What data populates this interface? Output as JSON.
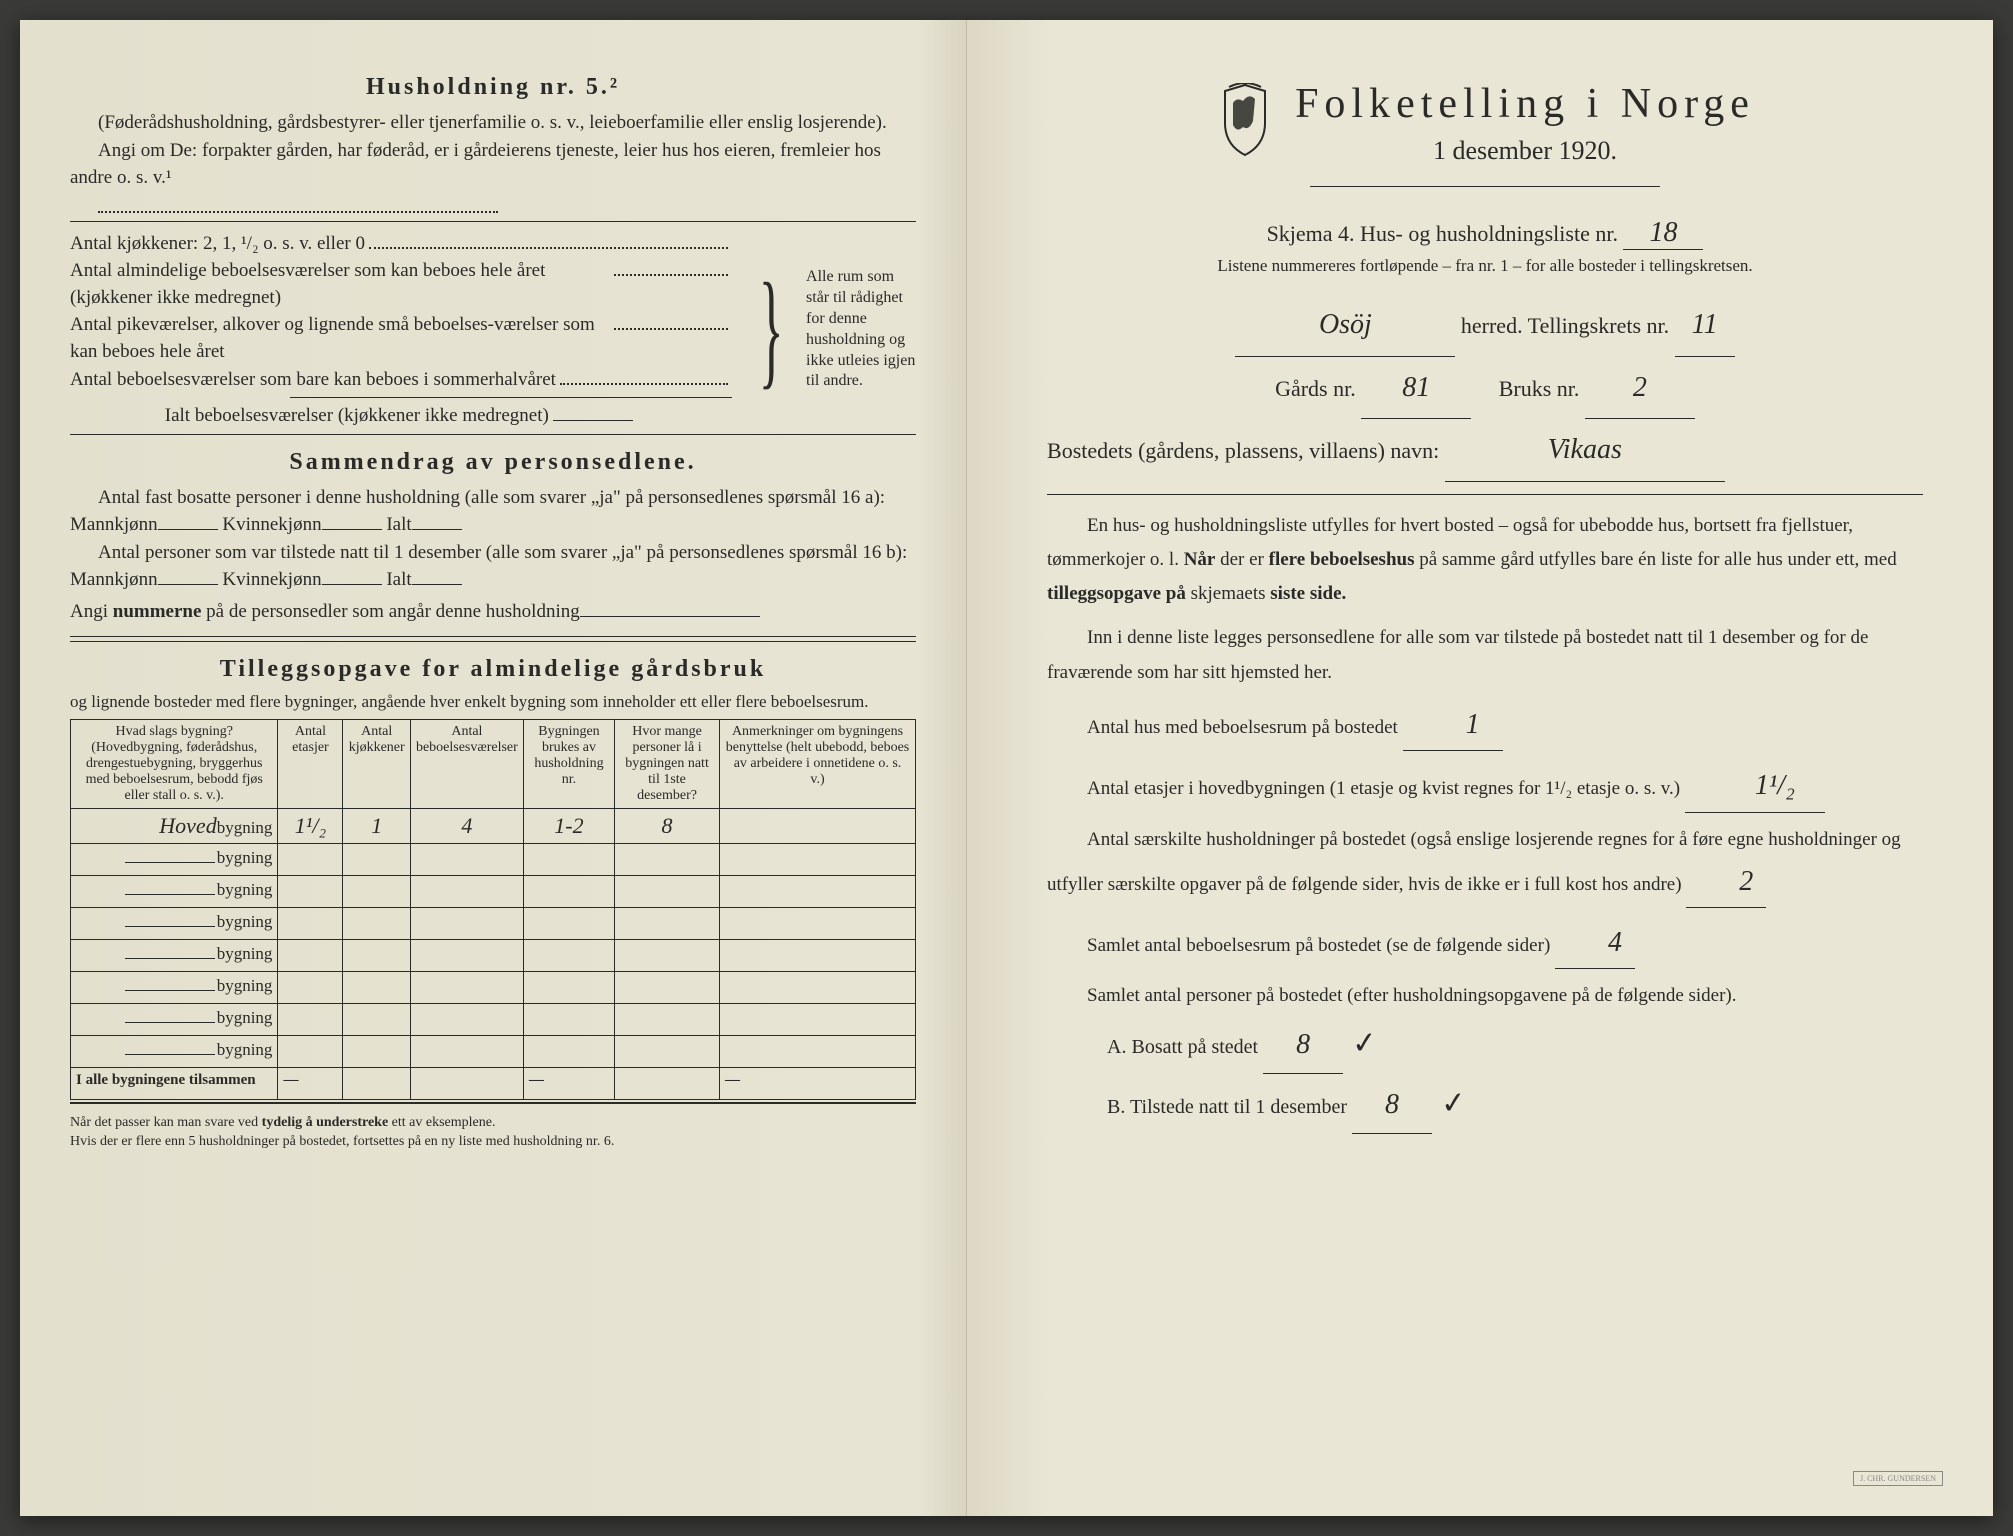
{
  "left": {
    "husholdning_title": "Husholdning nr. 5.²",
    "husholdning_note": "(Føderådshusholdning, gårdsbestyrer- eller tjenerfamilie o. s. v., leieboerfamilie eller enslig losjerende).",
    "angi_line": "Angi om De:  forpakter gården, har føderåd, er i gårdeierens tjeneste, leier hus hos eieren, fremleier hos andre o. s. v.¹",
    "kjokkener_line": "Antal kjøkkener: 2, 1, ¹/₂ o. s. v. eller 0",
    "antal1": "Antal almindelige beboelsesværelser som kan beboes hele året (kjøkkener ikke medregnet)",
    "antal2": "Antal pikeværelser, alkover og lignende små beboelses-værelser som kan beboes hele året",
    "antal3": "Antal beboelsesværelser som bare kan beboes i sommerhalvåret",
    "ialt_line": "Ialt beboelsesværelser (kjøkkener ikke medregnet)",
    "brace_note": "Alle rum som står til rådighet for denne husholdning og ikke utleies igjen til andre.",
    "sammendrag_title": "Sammendrag av personsedlene.",
    "samm1": "Antal fast bosatte personer i denne husholdning (alle som svarer „ja\" på personsedlenes spørsmål 16 a): Mannkjønn",
    "kvinne": "Kvinnekjønn",
    "ialt": "Ialt",
    "samm2": "Antal personer som var tilstede natt til 1 desember (alle som svarer „ja\" på personsedlenes spørsmål 16 b): Mannkjønn",
    "angi_nummer": "Angi nummerne på de personsedler som angår denne husholdning",
    "tillegg_title": "Tilleggsopgave for almindelige gårdsbruk",
    "tillegg_sub": "og lignende bosteder med flere bygninger, angående hver enkelt bygning som inneholder ett eller flere beboelsesrum.",
    "table": {
      "headers": [
        "Hvad slags bygning?\n(Hovedbygning, føderådshus, drengestuebygning, bryggerhus med beboelsesrum, bebodd fjøs eller stall o. s. v.).",
        "Antal etasjer",
        "Antal kjøkkener",
        "Antal beboelsesværelser",
        "Bygningen brukes av husholdning nr.",
        "Hvor mange personer lå i bygningen natt til 1ste desember?",
        "Anmerkninger om bygningens benyttelse (helt ubebodd, beboes av arbeidere i onnetidene o. s. v.)"
      ],
      "row_label_prefix": "Hoved",
      "row_label_suffix": "bygning",
      "rows": [
        {
          "prefix": "Hoved",
          "etasjer": "1¹/₂",
          "kjokkener": "1",
          "beboelse": "4",
          "hushold": "1-2",
          "personer": "8",
          "anm": ""
        },
        {
          "prefix": "",
          "etasjer": "",
          "kjokkener": "",
          "beboelse": "",
          "hushold": "",
          "personer": "",
          "anm": ""
        },
        {
          "prefix": "",
          "etasjer": "",
          "kjokkener": "",
          "beboelse": "",
          "hushold": "",
          "personer": "",
          "anm": ""
        },
        {
          "prefix": "",
          "etasjer": "",
          "kjokkener": "",
          "beboelse": "",
          "hushold": "",
          "personer": "",
          "anm": ""
        },
        {
          "prefix": "",
          "etasjer": "",
          "kjokkener": "",
          "beboelse": "",
          "hushold": "",
          "personer": "",
          "anm": ""
        },
        {
          "prefix": "",
          "etasjer": "",
          "kjokkener": "",
          "beboelse": "",
          "hushold": "",
          "personer": "",
          "anm": ""
        },
        {
          "prefix": "",
          "etasjer": "",
          "kjokkener": "",
          "beboelse": "",
          "hushold": "",
          "personer": "",
          "anm": ""
        },
        {
          "prefix": "",
          "etasjer": "",
          "kjokkener": "",
          "beboelse": "",
          "hushold": "",
          "personer": "",
          "anm": ""
        }
      ],
      "footer": "I alle bygningene tilsammen"
    },
    "footnote": "Når det passer kan man svare ved tydelig å understreke ett av eksemplene.\nHvis der er flere enn 5 husholdninger på bostedet, fortsettes på en ny liste med husholdning nr. 6."
  },
  "right": {
    "main_title": "Folketelling i Norge",
    "main_date": "1 desember 1920.",
    "skjema": "Skjema 4.  Hus- og husholdningsliste nr.",
    "skjema_nr": "18",
    "sub": "Listene nummereres fortløpende – fra nr. 1 – for alle bosteder i tellingskretsen.",
    "herred_val": "Osöj",
    "herred_lbl": "herred.  Tellingskrets nr.",
    "krets_nr": "11",
    "gards_lbl": "Gårds nr.",
    "gards_nr": "81",
    "bruks_lbl": "Bruks nr.",
    "bruks_nr": "2",
    "bosted_lbl": "Bostedets (gårdens, plassens, villaens) navn:",
    "bosted_val": "Vikaas",
    "p1": "En hus- og husholdningsliste utfylles for hvert bosted – også for ubebodde hus, bortsett fra fjellstuer, tømmerkojer o. l.  Når der er flere beboelseshus på samme gård utfylles bare én liste for alle hus under ett, med tilleggsopgave på skjemaets siste side.",
    "p2": "Inn i denne liste legges personsedlene for alle som var tilstede på bostedet natt til 1 desember og for de fraværende som har sitt hjemsted her.",
    "q1": "Antal hus med beboelsesrum på bostedet",
    "q1v": "1",
    "q2": "Antal etasjer i hovedbygningen (1 etasje og kvist regnes for 1¹/₂ etasje o. s. v.)",
    "q2v": "1¹/₂",
    "q3": "Antal særskilte husholdninger på bostedet (også enslige losjerende regnes for å føre egne husholdninger og utfyller særskilte opgaver på de følgende sider, hvis de ikke er i full kost hos andre)",
    "q3v": "2",
    "q4": "Samlet antal beboelsesrum på bostedet (se de følgende sider)",
    "q4v": "4",
    "q5": "Samlet antal personer på bostedet (efter husholdningsopgavene på de følgende sider).",
    "qa": "A.  Bosatt på stedet",
    "qav": "8",
    "qb": "B.  Tilstede natt til 1 desember",
    "qbv": "8"
  },
  "colors": {
    "paper": "#e8e4d4",
    "ink": "#2a2a28",
    "background": "#3a3a38"
  }
}
